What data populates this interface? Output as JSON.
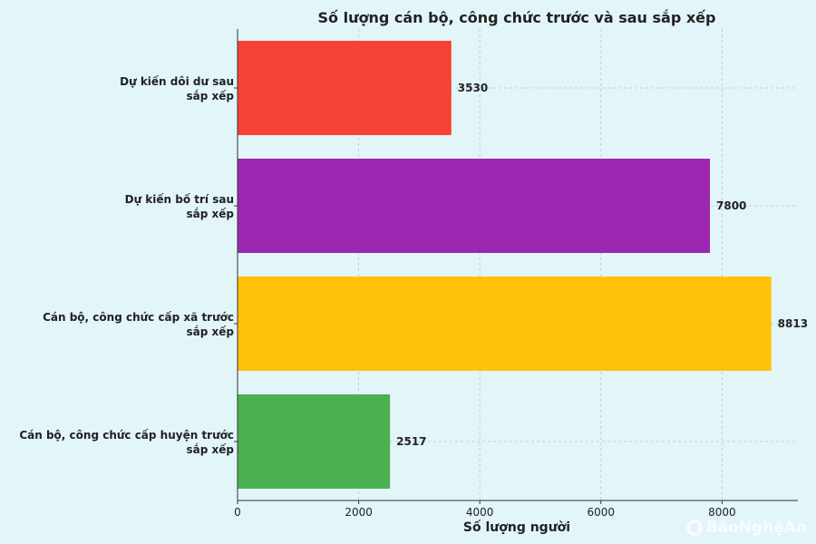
{
  "chart_data": {
    "type": "bar",
    "orientation": "horizontal",
    "title": "Số lượng cán bộ, công chức trước và sau sắp xếp",
    "xlabel": "Số lượng người",
    "ylabel": "",
    "xlim": [
      0,
      9252
    ],
    "xticks": [
      0,
      2000,
      4000,
      6000,
      8000
    ],
    "grid": true,
    "categories": [
      {
        "line1": "Dự kiến dôi dư sau",
        "line2": "sắp xếp"
      },
      {
        "line1": "Dự kiến bố trí sau",
        "line2": "sắp xếp"
      },
      {
        "line1": "Cán bộ, công chức cấp xã trước",
        "line2": "sắp xếp"
      },
      {
        "line1": "Cán bộ, công chức cấp huyện trước",
        "line2": "sắp xếp"
      }
    ],
    "values": [
      3530,
      7800,
      8813,
      2517
    ],
    "colors": [
      "#f44336",
      "#9c27b0",
      "#ffc107",
      "#4caf50"
    ]
  },
  "watermark": {
    "text": "BáoNghệAn"
  },
  "colors": {
    "background": "#e2f5f9"
  }
}
